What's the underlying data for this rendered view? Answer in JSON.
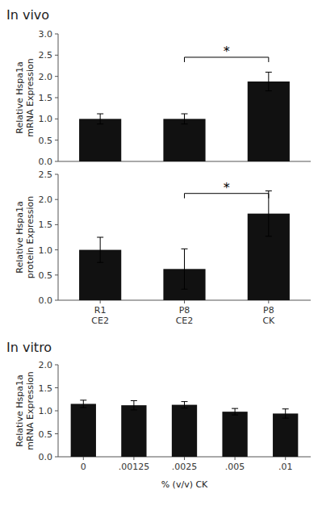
{
  "chart_data": [
    {
      "type": "bar",
      "title": "In vivo",
      "categories": [
        null,
        null,
        null
      ],
      "values": [
        1.0,
        1.0,
        1.88
      ],
      "errors": [
        0.12,
        0.12,
        0.22
      ],
      "color": "#111111",
      "y_label": "Relative Hspa1a\nmRNA Expression",
      "ylim": [
        0.0,
        3.0
      ],
      "yticks": [
        {
          "value": 0.0,
          "label": "0.0"
        },
        0.5,
        {
          "value": 1.0,
          "label": "1.0"
        },
        1.5,
        {
          "value": 2.0,
          "label": "2.0"
        },
        2.5,
        {
          "value": 3.0,
          "label": "3.0"
        }
      ],
      "tick_labels": "y",
      "annotations": [
        {
          "text": "*",
          "x": [
            1,
            2
          ],
          "y": 2.45
        }
      ]
    },
    {
      "type": "bar",
      "categories": [
        "R1\nCE2",
        "P8\nCE2",
        "P8\nCK"
      ],
      "values": [
        1.0,
        0.62,
        1.72
      ],
      "errors": [
        0.25,
        0.4,
        0.45
      ],
      "color": "#111111",
      "y_label": "Relative Hspa1a\nprotein Expression",
      "ylim": [
        0.0,
        2.5
      ],
      "yticks": [
        {
          "value": 0.0,
          "label": "0.0"
        },
        0.5,
        {
          "value": 1.0,
          "label": "1.0"
        },
        1.5,
        {
          "value": 2.0,
          "label": "2.0"
        },
        2.5
      ],
      "annotations": [
        {
          "text": "*",
          "x": [
            1,
            2
          ],
          "y": 2.12
        }
      ]
    },
    {
      "type": "bar",
      "title": "In vitro",
      "categories": [
        "0",
        ".00125",
        ".0025",
        ".005",
        ".01"
      ],
      "values": [
        1.15,
        1.12,
        1.13,
        0.98,
        0.94
      ],
      "errors": [
        0.08,
        0.1,
        0.07,
        0.07,
        0.1
      ],
      "color": "#111111",
      "x_label": "% (v/v) CK",
      "y_label": "Relative Hspa1a\nmRNA Expression",
      "ylim": [
        0.0,
        2.0
      ],
      "yticks": [
        {
          "value": 0.0,
          "label": "0.0"
        },
        0.5,
        {
          "value": 1.0,
          "label": "1.0"
        },
        1.5,
        {
          "value": 2.0,
          "label": "2.0"
        }
      ]
    }
  ]
}
